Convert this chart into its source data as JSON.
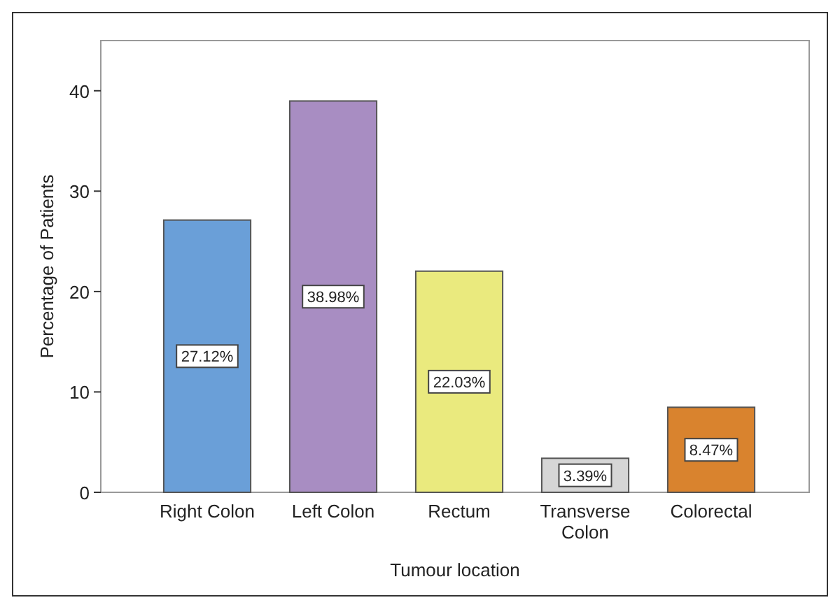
{
  "chart_data": {
    "type": "bar",
    "xlabel": "Tumour location",
    "ylabel": "Percentage of Patients",
    "categories": [
      "Right Colon",
      "Left Colon",
      "Rectum",
      "Transverse Colon",
      "Colorectal"
    ],
    "values": [
      27.12,
      38.98,
      22.03,
      3.39,
      8.47
    ],
    "value_labels": [
      "27.12%",
      "38.98%",
      "22.03%",
      "3.39%",
      "8.47%"
    ],
    "colors": [
      "#6a9fd8",
      "#a88dc2",
      "#eaea7e",
      "#d6d6d6",
      "#d9832e"
    ],
    "ylim": [
      0,
      45
    ],
    "yticks": [
      0,
      10,
      20,
      30,
      40
    ],
    "grid": false
  }
}
